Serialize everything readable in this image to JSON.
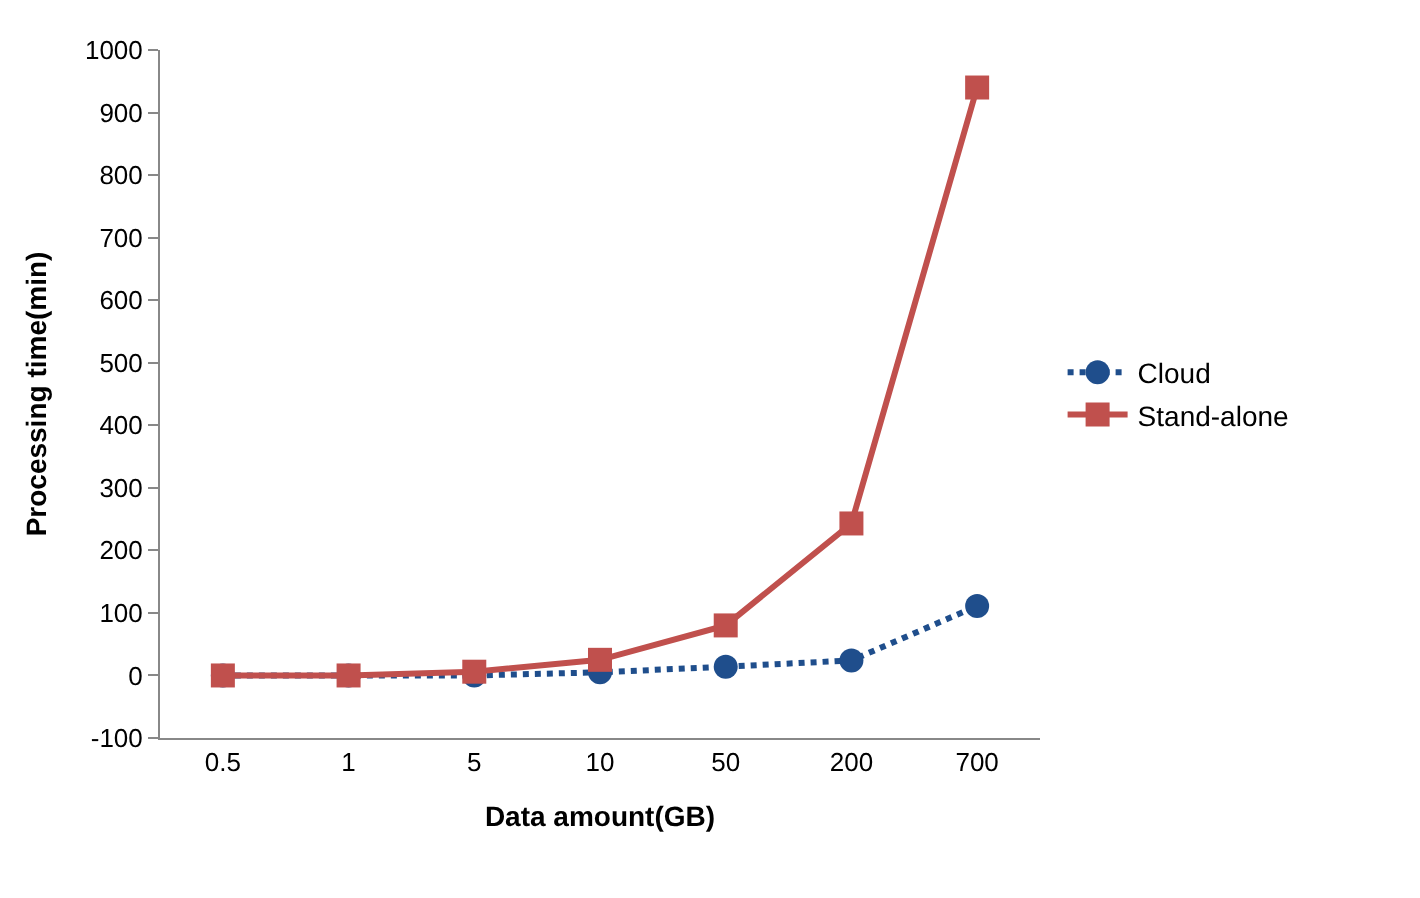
{
  "chart_data": {
    "type": "line",
    "xlabel": "Data amount(GB)",
    "ylabel": "Processing time(min)",
    "categories": [
      "0.5",
      "1",
      "5",
      "10",
      "50",
      "200",
      "700"
    ],
    "series": [
      {
        "name": "Cloud",
        "color": "#1f4e8c",
        "values": [
          0,
          0,
          0,
          5,
          14,
          24,
          111
        ],
        "marker": "circle",
        "line_style": "dotted"
      },
      {
        "name": "Stand-alone",
        "color": "#c0504d",
        "values": [
          0,
          0,
          6,
          25,
          80,
          243,
          940
        ],
        "marker": "square",
        "line_style": "solid"
      }
    ],
    "ylim": [
      -100,
      1000
    ],
    "yticks": [
      -100,
      0,
      100,
      200,
      300,
      400,
      500,
      600,
      700,
      800,
      900,
      1000
    ],
    "legend": "right"
  }
}
